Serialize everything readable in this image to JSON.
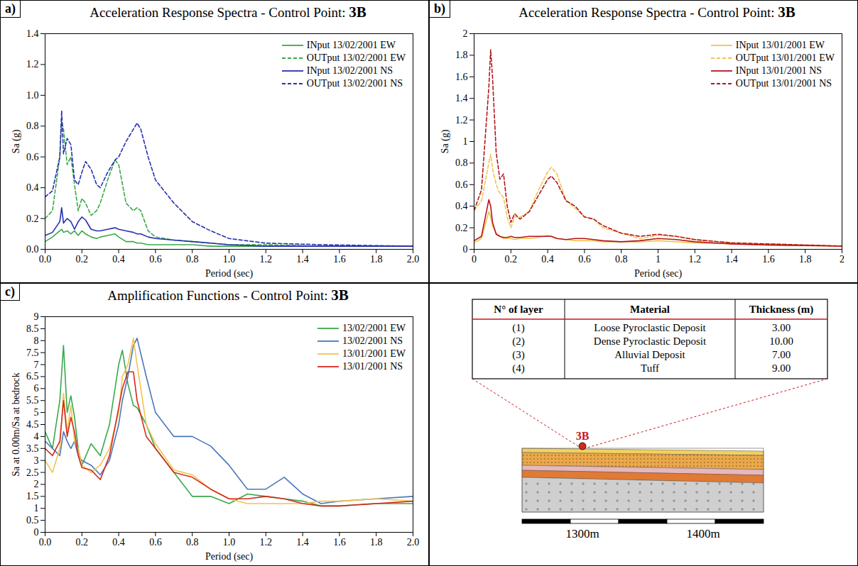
{
  "chart_data": [
    {
      "type": "line",
      "panel": "a)",
      "title": "Acceleration Response Spectra - Control Point:",
      "control_point": "3B",
      "x_label": "Period (sec)",
      "y_label": "Sa (g)",
      "x": [
        0,
        0.04,
        0.08,
        0.09,
        0.1,
        0.12,
        0.14,
        0.16,
        0.18,
        0.2,
        0.22,
        0.25,
        0.28,
        0.3,
        0.34,
        0.38,
        0.4,
        0.44,
        0.48,
        0.5,
        0.52,
        0.56,
        0.6,
        0.7,
        0.8,
        0.9,
        1.0,
        1.2,
        1.5,
        2.0
      ],
      "series": [
        {
          "name": "INput 13/02/2001 EW",
          "color": "#3aa84a",
          "line_style": "solid",
          "values": [
            0.05,
            0.08,
            0.12,
            0.13,
            0.11,
            0.12,
            0.1,
            0.12,
            0.09,
            0.12,
            0.1,
            0.08,
            0.07,
            0.08,
            0.09,
            0.1,
            0.08,
            0.05,
            0.05,
            0.04,
            0.04,
            0.03,
            0.03,
            0.03,
            0.03,
            0.02,
            0.02,
            0.02,
            0.02,
            0.02
          ]
        },
        {
          "name": "OUTput 13/02/2001 EW",
          "color": "#3aa84a",
          "line_style": "dashed",
          "values": [
            0.2,
            0.25,
            0.6,
            0.83,
            0.78,
            0.55,
            0.6,
            0.42,
            0.25,
            0.33,
            0.3,
            0.22,
            0.25,
            0.3,
            0.45,
            0.58,
            0.55,
            0.3,
            0.25,
            0.27,
            0.25,
            0.12,
            0.08,
            0.06,
            0.05,
            0.04,
            0.03,
            0.03,
            0.02,
            0.02
          ]
        },
        {
          "name": "INput 13/02/2001 NS",
          "color": "#2630b0",
          "line_style": "solid",
          "values": [
            0.09,
            0.11,
            0.18,
            0.27,
            0.17,
            0.2,
            0.18,
            0.13,
            0.18,
            0.21,
            0.19,
            0.13,
            0.12,
            0.12,
            0.13,
            0.14,
            0.13,
            0.12,
            0.11,
            0.1,
            0.1,
            0.08,
            0.07,
            0.06,
            0.05,
            0.04,
            0.03,
            0.02,
            0.02,
            0.02
          ]
        },
        {
          "name": "OUTput 13/02/2001 NS",
          "color": "#2630b0",
          "line_style": "dashed",
          "values": [
            0.34,
            0.38,
            0.6,
            0.9,
            0.62,
            0.72,
            0.68,
            0.45,
            0.42,
            0.5,
            0.57,
            0.52,
            0.42,
            0.4,
            0.5,
            0.58,
            0.6,
            0.7,
            0.78,
            0.82,
            0.78,
            0.6,
            0.45,
            0.3,
            0.18,
            0.12,
            0.07,
            0.04,
            0.03,
            0.02
          ]
        }
      ],
      "xlim": [
        0,
        2
      ],
      "xticks": [
        {
          "value": 0,
          "label": "0.0"
        },
        0.2,
        0.4,
        0.6,
        0.8,
        {
          "value": 1,
          "label": "1.0"
        },
        1.2,
        1.4,
        1.6,
        1.8,
        {
          "value": 2,
          "label": "2.0"
        }
      ],
      "ylim": [
        0,
        1.4
      ],
      "yticks": [
        {
          "value": 0,
          "label": "0.0"
        },
        0.2,
        0.4,
        0.6,
        0.8,
        {
          "value": 1,
          "label": "1.0"
        },
        1.2,
        1.4
      ],
      "grid": false,
      "legend": "top-right"
    },
    {
      "type": "line",
      "panel": "b)",
      "title": "Acceleration Response Spectra - Control Point:",
      "control_point": "3B",
      "x_label": "Period (sec)",
      "y_label": "Sa (g)",
      "x": [
        0,
        0.04,
        0.08,
        0.09,
        0.1,
        0.12,
        0.14,
        0.16,
        0.18,
        0.2,
        0.22,
        0.25,
        0.3,
        0.35,
        0.4,
        0.42,
        0.45,
        0.5,
        0.55,
        0.6,
        0.65,
        0.7,
        0.8,
        0.9,
        1.0,
        1.1,
        1.2,
        1.4,
        1.6,
        2.0
      ],
      "series": [
        {
          "name": "INput 13/01/2001 EW",
          "color": "#f2c44e",
          "line_style": "solid",
          "values": [
            0.06,
            0.1,
            0.35,
            0.3,
            0.22,
            0.15,
            0.12,
            0.1,
            0.1,
            0.1,
            0.09,
            0.1,
            0.1,
            0.11,
            0.13,
            0.12,
            0.1,
            0.09,
            0.08,
            0.08,
            0.08,
            0.07,
            0.07,
            0.07,
            0.08,
            0.07,
            0.06,
            0.05,
            0.04,
            0.03
          ]
        },
        {
          "name": "OUTput 13/01/2001 EW",
          "color": "#f2c44e",
          "line_style": "dashed",
          "values": [
            0.36,
            0.45,
            0.8,
            0.88,
            0.75,
            0.6,
            0.52,
            0.48,
            0.3,
            0.2,
            0.3,
            0.3,
            0.35,
            0.55,
            0.72,
            0.76,
            0.7,
            0.45,
            0.38,
            0.3,
            0.28,
            0.2,
            0.15,
            0.1,
            0.13,
            0.12,
            0.09,
            0.06,
            0.05,
            0.03
          ]
        },
        {
          "name": "INput 13/01/2001 NS",
          "color": "#b3161c",
          "line_style": "solid",
          "values": [
            0.08,
            0.12,
            0.46,
            0.4,
            0.25,
            0.14,
            0.12,
            0.11,
            0.11,
            0.12,
            0.11,
            0.11,
            0.12,
            0.12,
            0.12,
            0.12,
            0.1,
            0.09,
            0.1,
            0.1,
            0.09,
            0.08,
            0.07,
            0.08,
            0.1,
            0.09,
            0.07,
            0.05,
            0.04,
            0.03
          ]
        },
        {
          "name": "OUTput 13/01/2001 NS",
          "color": "#b3161c",
          "line_style": "dashed",
          "values": [
            0.36,
            0.55,
            1.5,
            1.85,
            1.6,
            0.9,
            0.65,
            0.7,
            0.4,
            0.25,
            0.33,
            0.28,
            0.35,
            0.5,
            0.65,
            0.68,
            0.62,
            0.45,
            0.4,
            0.3,
            0.28,
            0.22,
            0.15,
            0.12,
            0.14,
            0.12,
            0.09,
            0.06,
            0.05,
            0.03
          ]
        }
      ],
      "xlim": [
        0,
        2
      ],
      "xticks": [
        0,
        0.2,
        0.4,
        0.6,
        0.8,
        1,
        1.2,
        1.4,
        1.6,
        1.8,
        2
      ],
      "ylim": [
        0,
        2
      ],
      "yticks": [
        0,
        0.2,
        0.4,
        0.6,
        0.8,
        1,
        1.2,
        1.4,
        1.6,
        1.8,
        2
      ],
      "grid": false,
      "legend": "top-right"
    },
    {
      "type": "line",
      "panel": "c)",
      "title": "Amplification Functions - Control Point:",
      "control_point": "3B",
      "x_label": "Period (sec)",
      "y_label": "Sa at 0.00m/Sa at bedrock",
      "x": [
        0,
        0.04,
        0.08,
        0.1,
        0.12,
        0.14,
        0.16,
        0.18,
        0.2,
        0.25,
        0.3,
        0.35,
        0.4,
        0.42,
        0.45,
        0.48,
        0.5,
        0.55,
        0.6,
        0.7,
        0.8,
        0.9,
        1.0,
        1.1,
        1.2,
        1.3,
        1.4,
        1.5,
        1.6,
        1.8,
        2.0
      ],
      "series": [
        {
          "name": "13/02/2001 EW",
          "color": "#3aa84a",
          "line_style": "solid",
          "values": [
            4.2,
            3.5,
            5.5,
            7.8,
            5,
            5.7,
            4.8,
            3.5,
            2.8,
            3.7,
            3.2,
            4.5,
            7.0,
            7.6,
            6.2,
            5.3,
            5.2,
            4.5,
            3.5,
            2.5,
            1.5,
            1.5,
            1.2,
            1.6,
            1.5,
            1.4,
            1.3,
            1.1,
            1.1,
            1.2,
            1.2
          ]
        },
        {
          "name": "13/02/2001 NS",
          "color": "#4a78b8",
          "line_style": "solid",
          "values": [
            3.8,
            3.5,
            3.2,
            4.2,
            3.8,
            3.5,
            3.8,
            3.2,
            3.0,
            2.8,
            2.4,
            3.0,
            4.5,
            5.5,
            6.5,
            7.8,
            8.1,
            6.5,
            5.0,
            4.0,
            4.0,
            3.6,
            2.8,
            1.8,
            1.8,
            2.3,
            1.6,
            1.2,
            1.3,
            1.4,
            1.5
          ]
        },
        {
          "name": "13/01/2001 EW",
          "color": "#f2c44e",
          "line_style": "solid",
          "values": [
            3.0,
            2.5,
            3.5,
            5.8,
            4.2,
            5.3,
            3.8,
            3.5,
            2.8,
            2.5,
            2.8,
            3.5,
            5.0,
            6.5,
            7.0,
            8.1,
            7.0,
            4.5,
            3.7,
            2.6,
            2.4,
            1.8,
            1.4,
            1.2,
            1.2,
            1.2,
            1.2,
            1.3,
            1.3,
            1.4,
            1.3
          ]
        },
        {
          "name": "13/01/2001 NS",
          "color": "#d42a1e",
          "line_style": "solid",
          "values": [
            3.5,
            3.2,
            3.8,
            5.5,
            4.0,
            4.8,
            4.2,
            3.2,
            2.7,
            2.6,
            2.2,
            3.2,
            5.2,
            6.0,
            6.7,
            6.7,
            5.5,
            4.0,
            3.5,
            2.5,
            2.3,
            1.8,
            1.4,
            1.4,
            1.5,
            1.4,
            1.2,
            1.1,
            1.1,
            1.2,
            1.3
          ]
        }
      ],
      "xlim": [
        0,
        2
      ],
      "xticks": [
        {
          "value": 0,
          "label": "0.0"
        },
        0.2,
        0.4,
        0.6,
        0.8,
        {
          "value": 1,
          "label": "1.0"
        },
        1.2,
        1.4,
        1.6,
        1.8,
        {
          "value": 2,
          "label": "2.0"
        }
      ],
      "ylim": [
        0,
        9
      ],
      "yticks": [
        0,
        0.5,
        1,
        1.5,
        2,
        2.5,
        3,
        3.5,
        4,
        4.5,
        5,
        5.5,
        6,
        6.5,
        7,
        7.5,
        8,
        8.5,
        9
      ],
      "grid": false,
      "legend": "top-right"
    }
  ],
  "table": {
    "columns": [
      "N° of layer",
      "Material",
      "Thickness (m)"
    ],
    "rows": [
      [
        "(1)",
        "Loose Pyroclastic Deposit",
        "3.00"
      ],
      [
        "(2)",
        "Dense Pyroclastic Deposit",
        "10.00"
      ],
      [
        "(3)",
        "Alluvial Deposit",
        "7.00"
      ],
      [
        "(4)",
        "Tuff",
        "9.00"
      ]
    ]
  },
  "cross_section": {
    "point": "3B",
    "scale_labels": [
      "1300m",
      "1400m"
    ]
  }
}
